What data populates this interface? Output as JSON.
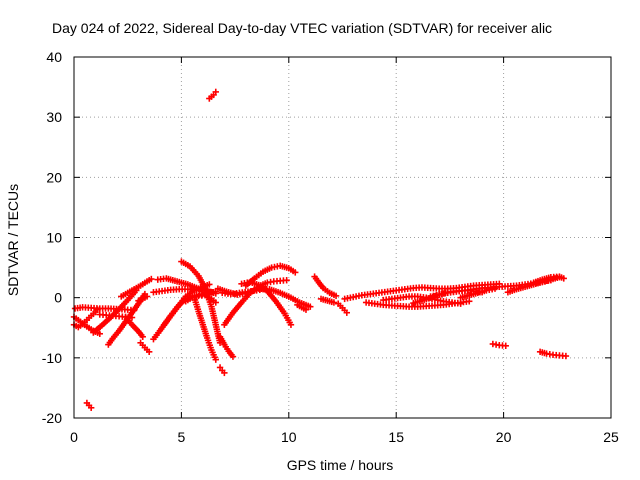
{
  "chart_data": {
    "type": "scatter",
    "title": "Day 024 of 2022, Sidereal Day-to-day VTEC variation (SDTVAR) for receiver alic",
    "xlabel": "GPS time / hours",
    "ylabel": "SDTVAR / TECUs",
    "xlim": [
      0,
      25
    ],
    "ylim": [
      -20,
      40
    ],
    "xticks": [
      0,
      5,
      10,
      15,
      20,
      25
    ],
    "yticks": [
      -20,
      -10,
      0,
      10,
      20,
      30,
      40
    ],
    "grid": true,
    "series": [
      {
        "name": "SDTVAR",
        "color": "#ff0000",
        "marker": "plus",
        "segments": [
          {
            "x": [
              0.05,
              0.4,
              0.8,
              1.2,
              1.6,
              2.1,
              2.5,
              2.8
            ],
            "y": [
              -1.8,
              -1.6,
              -1.7,
              -1.8,
              -1.8,
              -1.9,
              -2.0,
              -2.1
            ]
          },
          {
            "x": [
              0.0,
              0.2,
              0.4,
              0.6,
              0.8,
              1.0,
              1.1
            ],
            "y": [
              -4.5,
              -4.9,
              -4.4,
              -3.7,
              -3.0,
              -2.4,
              -2.0
            ]
          },
          {
            "x": [
              0.0,
              0.3,
              0.6,
              0.9,
              1.2
            ],
            "y": [
              -3.2,
              -4.0,
              -4.8,
              -5.5,
              -6.0
            ]
          },
          {
            "x": [
              0.6,
              0.7,
              0.8
            ],
            "y": [
              -17.5,
              -17.9,
              -18.3
            ]
          },
          {
            "x": [
              0.9,
              1.3,
              1.7,
              2.1,
              2.5,
              2.9
            ],
            "y": [
              -5.8,
              -4.6,
              -3.3,
              -1.9,
              -0.4,
              1.2
            ]
          },
          {
            "x": [
              1.2,
              1.5,
              1.8,
              2.1,
              2.4,
              2.7
            ],
            "y": [
              -2.8,
              -2.9,
              -3.0,
              -3.1,
              -3.2,
              -3.3
            ]
          },
          {
            "x": [
              1.6,
              1.8,
              2.1,
              2.4,
              2.7,
              3.0,
              3.3
            ],
            "y": [
              -7.8,
              -6.8,
              -5.5,
              -4.0,
              -2.5,
              -1.0,
              0.6
            ]
          },
          {
            "x": [
              2.4,
              2.7,
              3.0,
              3.2
            ],
            "y": [
              -3.2,
              -4.5,
              -5.6,
              -6.5
            ]
          },
          {
            "x": [
              2.2,
              2.5,
              2.8,
              3.1,
              3.4,
              3.6
            ],
            "y": [
              0.2,
              0.8,
              1.4,
              2.0,
              2.7,
              3.1
            ]
          },
          {
            "x": [
              3.1,
              3.3,
              3.5
            ],
            "y": [
              -7.5,
              -8.3,
              -9.0
            ]
          },
          {
            "x": [
              3.0,
              3.2,
              3.4
            ],
            "y": [
              -0.5,
              -0.2,
              0.2
            ]
          },
          {
            "x": [
              3.7,
              4.0,
              4.3,
              4.6,
              4.9,
              5.2,
              5.6,
              6.0,
              6.3
            ],
            "y": [
              -6.9,
              -5.5,
              -4.0,
              -2.6,
              -1.2,
              0.2,
              1.2,
              1.8,
              2.2
            ]
          },
          {
            "x": [
              4.2,
              4.5,
              4.8,
              5.1,
              5.4,
              5.7,
              6.0,
              6.3,
              6.6
            ],
            "y": [
              -4.5,
              -3.0,
              -1.6,
              -0.5,
              0.1,
              0.4,
              0.6,
              0.8,
              1.0
            ]
          },
          {
            "x": [
              3.9,
              4.3,
              4.8,
              5.3,
              5.8,
              6.3,
              6.6
            ],
            "y": [
              3.0,
              3.2,
              2.7,
              2.2,
              1.5,
              1.0,
              0.7
            ]
          },
          {
            "x": [
              3.7,
              4.1,
              4.5,
              4.9,
              5.3,
              5.7,
              6.1,
              6.5
            ],
            "y": [
              0.9,
              1.1,
              1.3,
              1.4,
              1.4,
              1.3,
              1.1,
              0.9
            ]
          },
          {
            "x": [
              5.0,
              5.4,
              5.8,
              6.1,
              6.4,
              6.6,
              6.8
            ],
            "y": [
              6.0,
              5.2,
              3.6,
              1.6,
              -1.5,
              -4.5,
              -7.5
            ]
          },
          {
            "x": [
              5.6,
              5.8,
              6.0,
              6.2,
              6.4,
              6.6
            ],
            "y": [
              0.0,
              -2.3,
              -4.5,
              -6.7,
              -8.7,
              -10.3
            ]
          },
          {
            "x": [
              5.2,
              5.5,
              5.8,
              6.1,
              6.4,
              6.6
            ],
            "y": [
              -0.6,
              0.0,
              0.3,
              0.4,
              -0.2,
              -0.8
            ]
          },
          {
            "x": [
              6.3,
              6.5,
              6.6
            ],
            "y": [
              33.1,
              33.7,
              34.2
            ]
          },
          {
            "x": [
              6.8,
              6.9,
              7.0
            ],
            "y": [
              -11.6,
              -12.1,
              -12.5
            ]
          },
          {
            "x": [
              6.8,
              7.0,
              7.2,
              7.4
            ],
            "y": [
              -6.5,
              -7.8,
              -8.9,
              -9.8
            ]
          },
          {
            "x": [
              6.9,
              7.3,
              7.7,
              8.1,
              8.5,
              8.8
            ],
            "y": [
              0.8,
              0.6,
              0.8,
              1.0,
              1.2,
              1.4
            ]
          },
          {
            "x": [
              6.7,
              7.1,
              7.6,
              8.1,
              8.6,
              9.1,
              9.6,
              10.1,
              10.5,
              11.0
            ],
            "y": [
              1.5,
              1.0,
              0.5,
              0.8,
              1.5,
              1.4,
              0.8,
              0.0,
              -0.8,
              -1.5
            ]
          },
          {
            "x": [
              7.0,
              7.4,
              7.8,
              8.2,
              8.6,
              9.0,
              9.3,
              9.6,
              9.9
            ],
            "y": [
              -4.5,
              -2.5,
              -0.8,
              0.8,
              1.9,
              2.5,
              2.7,
              2.8,
              2.9
            ]
          },
          {
            "x": [
              7.8,
              8.2,
              8.6,
              9.0,
              9.4,
              9.8,
              10.1
            ],
            "y": [
              2.3,
              2.6,
              2.1,
              1.1,
              -0.6,
              -2.6,
              -4.5
            ]
          },
          {
            "x": [
              8.0,
              8.4,
              8.8,
              9.2,
              9.6,
              10.0,
              10.3
            ],
            "y": [
              2.0,
              3.2,
              4.3,
              5.0,
              5.3,
              4.9,
              4.2
            ]
          },
          {
            "x": [
              10.4,
              10.6,
              10.8
            ],
            "y": [
              -1.2,
              -1.6,
              -2.0
            ]
          },
          {
            "x": [
              11.2,
              11.4,
              11.6,
              11.9,
              12.2
            ],
            "y": [
              3.5,
              2.5,
              1.6,
              0.8,
              0.3
            ]
          },
          {
            "x": [
              11.5,
              11.8,
              12.1
            ],
            "y": [
              -0.2,
              -0.5,
              -0.8
            ]
          },
          {
            "x": [
              12.3,
              12.5,
              12.7
            ],
            "y": [
              -1.0,
              -1.7,
              -2.5
            ]
          },
          {
            "x": [
              12.6,
              13.0,
              13.4,
              13.8,
              14.2,
              14.6,
              15.0,
              15.4,
              15.8,
              16.2,
              16.6,
              17.0,
              17.4,
              17.8,
              18.2,
              18.6,
              19.0,
              19.4,
              19.8
            ],
            "y": [
              -0.2,
              0.1,
              0.4,
              0.6,
              0.8,
              1.0,
              1.2,
              1.4,
              1.6,
              1.7,
              1.6,
              1.5,
              1.5,
              1.6,
              1.8,
              2.0,
              2.1,
              2.2,
              2.3
            ]
          },
          {
            "x": [
              13.6,
              14.0,
              14.4,
              14.8,
              15.2,
              15.6,
              16.0,
              16.4,
              16.8,
              17.2,
              17.6,
              18.0,
              18.4
            ],
            "y": [
              -0.8,
              -1.0,
              -1.2,
              -1.3,
              -1.4,
              -1.5,
              -1.5,
              -1.4,
              -1.3,
              -1.2,
              -1.0,
              -0.8,
              -0.6
            ]
          },
          {
            "x": [
              14.4,
              14.8,
              15.2,
              15.6,
              16.0,
              16.4,
              16.8,
              17.2,
              17.6,
              18.0
            ],
            "y": [
              -0.4,
              -0.2,
              0.0,
              0.2,
              0.2,
              0.0,
              -0.3,
              -0.6,
              -0.8,
              -1.0
            ]
          },
          {
            "x": [
              15.8,
              16.2,
              16.6,
              17.0,
              17.4,
              17.8,
              18.2,
              18.6,
              19.0
            ],
            "y": [
              -0.9,
              -0.5,
              0.0,
              0.5,
              0.9,
              1.1,
              1.2,
              1.1,
              0.9
            ]
          },
          {
            "x": [
              16.6,
              17.0,
              17.4,
              17.8,
              18.2,
              18.6,
              19.0,
              19.4,
              19.8,
              20.2,
              20.6,
              21.0,
              21.4,
              21.8,
              22.2
            ],
            "y": [
              0.2,
              0.5,
              0.8,
              1.0,
              1.2,
              1.4,
              1.6,
              1.7,
              1.8,
              1.9,
              2.0,
              2.2,
              2.4,
              2.6,
              2.9
            ]
          },
          {
            "x": [
              18.0,
              18.4,
              18.8,
              19.2,
              19.6
            ],
            "y": [
              0.0,
              0.4,
              0.8,
              1.2,
              1.5
            ]
          },
          {
            "x": [
              20.2,
              20.6,
              21.0,
              21.4,
              21.8,
              22.2,
              22.6
            ],
            "y": [
              0.9,
              1.4,
              1.8,
              2.2,
              2.6,
              3.0,
              3.4
            ]
          },
          {
            "x": [
              21.4,
              21.8,
              22.2,
              22.6,
              22.8
            ],
            "y": [
              2.5,
              3.0,
              3.4,
              3.5,
              3.2
            ]
          },
          {
            "x": [
              19.5,
              19.8,
              20.1
            ],
            "y": [
              -7.7,
              -7.9,
              -8.0
            ]
          },
          {
            "x": [
              21.7,
              22.0,
              22.3,
              22.6,
              22.9
            ],
            "y": [
              -9.0,
              -9.3,
              -9.5,
              -9.6,
              -9.7
            ]
          }
        ]
      }
    ]
  }
}
